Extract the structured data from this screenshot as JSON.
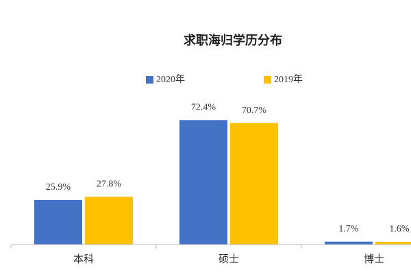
{
  "chart_data": {
    "type": "bar",
    "title": "求职海归学历分布",
    "categories": [
      "本科",
      "硕士",
      "博士"
    ],
    "series": [
      {
        "name": "2020年",
        "color": "#4472c4",
        "values": [
          25.9,
          72.4,
          1.7
        ],
        "value_labels": [
          "25.9%",
          "72.4%",
          "1.7%"
        ]
      },
      {
        "name": "2019年",
        "color": "#ffc000",
        "values": [
          27.8,
          70.7,
          1.6
        ],
        "value_labels": [
          "27.8%",
          "70.7%",
          "1.6%"
        ]
      }
    ]
  }
}
